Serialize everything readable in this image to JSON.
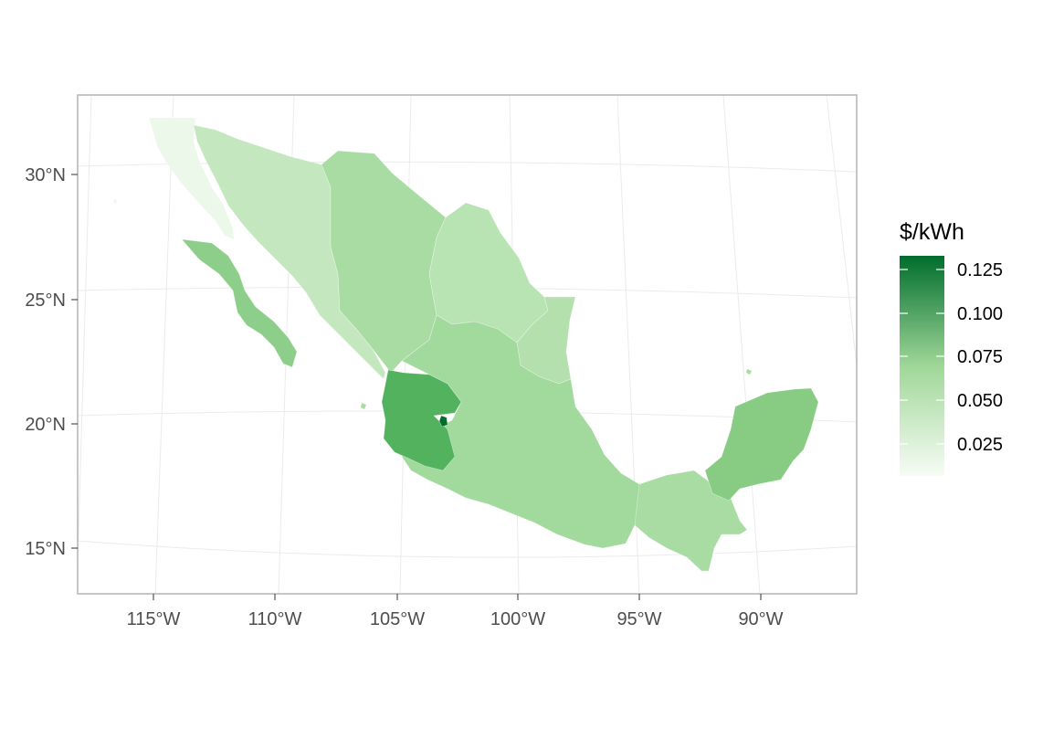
{
  "colors": {
    "low": "#f7fcf5",
    "high": "#006d2c",
    "region_colors": {
      "baja_california": "#ecf8ea",
      "sonora_sinaloa": "#c4e7bf",
      "bcs": "#8dcf8a",
      "chihuahua_durango": "#a8dca3",
      "coahuila_nl": "#b8e3b2",
      "tamaulipas": "#b4e0ad",
      "jalisco": "#52b25e",
      "center_south": "#a2d99d",
      "southeast": "#a8dca3",
      "yucatan": "#88cc84",
      "hotspot": "#006d2c"
    }
  },
  "map": {
    "projection": "conic",
    "graticule": true,
    "lat_labels": [
      "30°N",
      "25°N",
      "20°N",
      "15°N"
    ],
    "lon_labels": [
      "115°W",
      "110°W",
      "105°W",
      "100°W",
      "95°W",
      "90°W"
    ]
  },
  "legend": {
    "title": "$/kWh",
    "labels": [
      "0.125",
      "0.100",
      "0.075",
      "0.050",
      "0.025"
    ],
    "range": [
      0.0,
      0.135
    ]
  }
}
